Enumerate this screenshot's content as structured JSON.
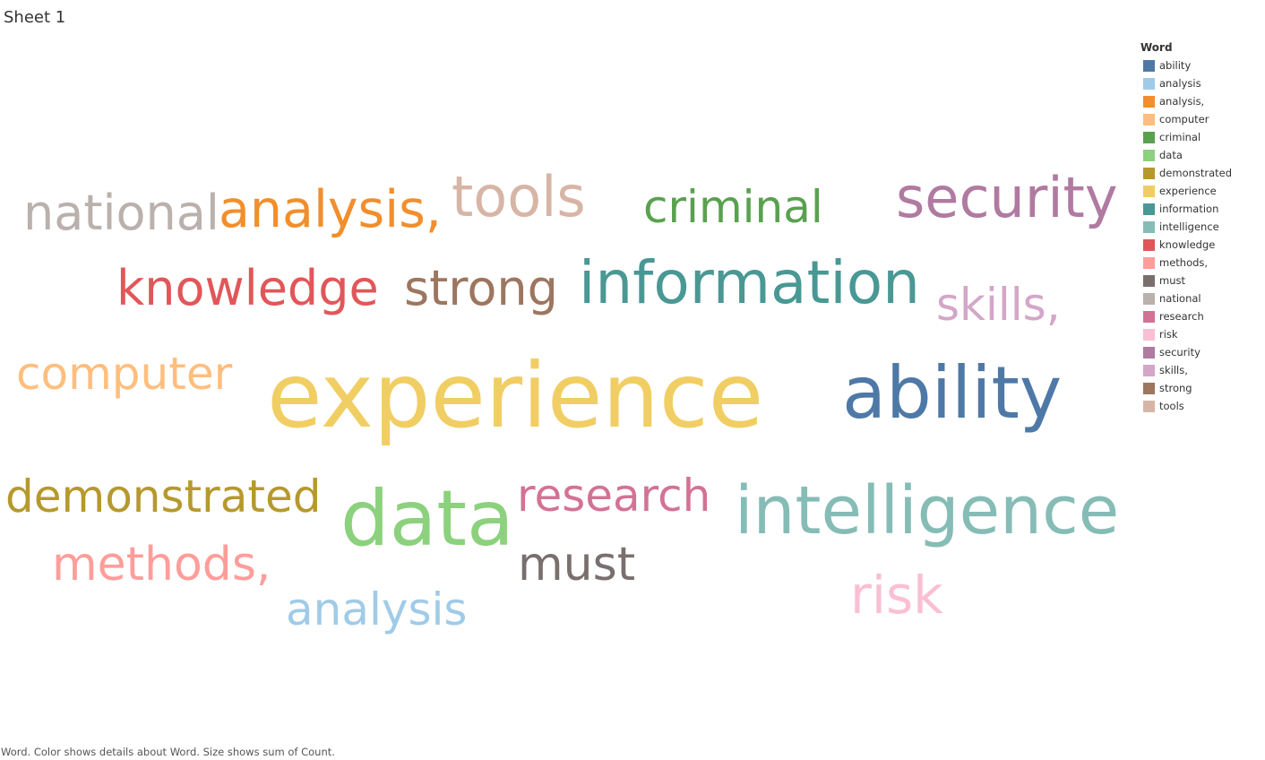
{
  "sheet": {
    "title": "Sheet 1",
    "caption": "Word.  Color shows details about Word.  Size shows sum of Count."
  },
  "legend": {
    "title": "Word"
  },
  "chart_data": {
    "type": "word_cloud",
    "title": "Sheet 1",
    "legend_field": "Word",
    "legend_placement": "right",
    "words": [
      {
        "text": "ability",
        "color": "#4E79A7"
      },
      {
        "text": "analysis",
        "color": "#A0CBE8"
      },
      {
        "text": "analysis,",
        "color": "#F28E2B"
      },
      {
        "text": "computer",
        "color": "#FFBE7D"
      },
      {
        "text": "criminal",
        "color": "#59A14F"
      },
      {
        "text": "data",
        "color": "#8CD17D"
      },
      {
        "text": "demonstrated",
        "color": "#B6992D"
      },
      {
        "text": "experience",
        "color": "#F1CE63"
      },
      {
        "text": "information",
        "color": "#499894"
      },
      {
        "text": "intelligence",
        "color": "#86BCB6"
      },
      {
        "text": "knowledge",
        "color": "#E15759"
      },
      {
        "text": "methods,",
        "color": "#FF9D9A"
      },
      {
        "text": "must",
        "color": "#79706E"
      },
      {
        "text": "national",
        "color": "#BAB0AC"
      },
      {
        "text": "research",
        "color": "#D37295"
      },
      {
        "text": "risk",
        "color": "#FABFD2"
      },
      {
        "text": "security",
        "color": "#B07AA1"
      },
      {
        "text": "skills,",
        "color": "#D4A6C8"
      },
      {
        "text": "strong",
        "color": "#9D7660"
      },
      {
        "text": "tools",
        "color": "#D7B5A6"
      }
    ]
  }
}
